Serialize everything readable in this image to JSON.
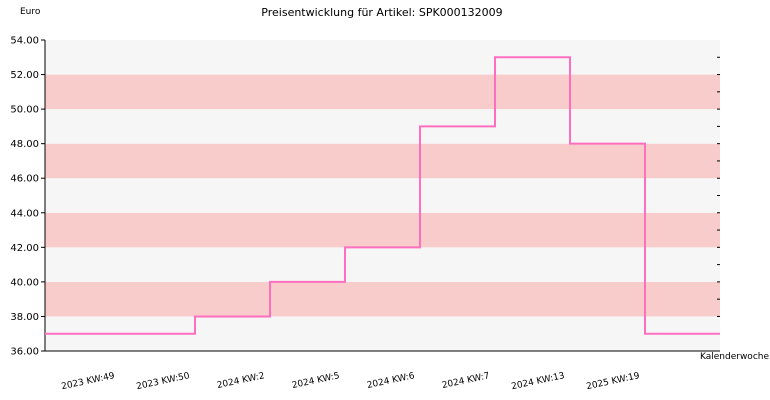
{
  "chart_data": {
    "type": "line",
    "step": true,
    "title": "Preisentwicklung für Artikel: SPK000132009",
    "ylabel": "Euro",
    "xlabel": "Kalenderwoche",
    "ylim": [
      36.0,
      54.0
    ],
    "ytick_step": 2.0,
    "yticks": [
      "36.00",
      "38.00",
      "40.00",
      "42.00",
      "44.00",
      "46.00",
      "48.00",
      "50.00",
      "52.00",
      "54.00"
    ],
    "categories": [
      "2023 KW:49",
      "2023 KW:50",
      "2024 KW:2",
      "2024 KW:5",
      "2024 KW:6",
      "2024 KW:7",
      "2024 KW:13",
      "2025 KW:19"
    ],
    "series": [
      {
        "values": [
          37.0,
          38.0,
          40.0,
          42.0,
          49.0,
          53.0,
          48.0,
          37.0
        ]
      }
    ],
    "grid": "horizontal bands",
    "colors": {
      "line": "#ff6fc0",
      "band_light": "#f6f6f6",
      "band_dark": "#f9cccc",
      "axis": "#000000"
    }
  }
}
